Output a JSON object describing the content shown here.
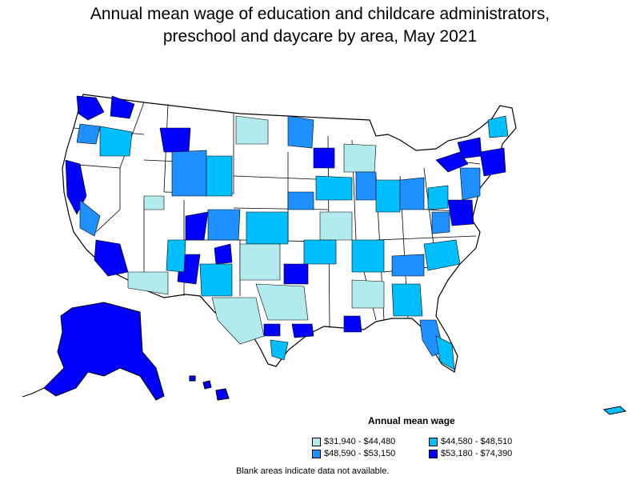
{
  "title_line1": "Annual mean wage of education and childcare administrators,",
  "title_line2": "preschool and daycare by area, May 2021",
  "legend": {
    "title": "Annual mean wage",
    "items": [
      {
        "label": "$31,940 - $44,480",
        "color": "#b2ebee"
      },
      {
        "label": "$44,580 - $48,510",
        "color": "#00bfff"
      },
      {
        "label": "$48,590 - $53,150",
        "color": "#1e90ff"
      },
      {
        "label": "$53,180 - $74,390",
        "color": "#0000ff"
      }
    ]
  },
  "note": "Blank areas indicate data not available."
}
